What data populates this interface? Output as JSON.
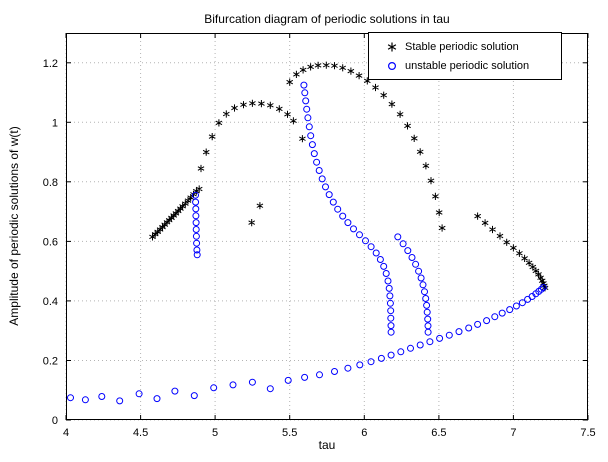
{
  "chart_data": {
    "type": "scatter",
    "title": "Bifurcation diagram of periodic solutions in tau",
    "xlabel": "tau",
    "ylabel": "Amplitude of periodic solutions of w(t)",
    "xlim": [
      4,
      7.5
    ],
    "ylim": [
      0,
      1.3
    ],
    "xticks": [
      4,
      4.5,
      5,
      5.5,
      6,
      6.5,
      7,
      7.5
    ],
    "yticks": [
      0,
      0.2,
      0.4,
      0.6,
      0.8,
      1,
      1.2
    ],
    "grid": true,
    "legend_position": "top-right",
    "axis_color": "#000000",
    "grid_color": "#b4b4b4",
    "series": [
      {
        "name": "Stable periodic solution",
        "marker": "asterisk",
        "color": "#000000",
        "points": [
          [
            4.58,
            0.615
          ],
          [
            4.598,
            0.624
          ],
          [
            4.615,
            0.632
          ],
          [
            4.631,
            0.64
          ],
          [
            4.647,
            0.648
          ],
          [
            4.662,
            0.656
          ],
          [
            4.677,
            0.664
          ],
          [
            4.692,
            0.671
          ],
          [
            4.707,
            0.679
          ],
          [
            4.722,
            0.687
          ],
          [
            4.737,
            0.694
          ],
          [
            4.752,
            0.702
          ],
          [
            4.767,
            0.71
          ],
          [
            4.782,
            0.718
          ],
          [
            4.8,
            0.727
          ],
          [
            4.818,
            0.737
          ],
          [
            4.836,
            0.747
          ],
          [
            4.855,
            0.758
          ],
          [
            4.874,
            0.769
          ],
          [
            4.893,
            0.776
          ],
          [
            4.905,
            0.845
          ],
          [
            4.94,
            0.9
          ],
          [
            4.98,
            0.952
          ],
          [
            5.025,
            0.998
          ],
          [
            5.075,
            1.028
          ],
          [
            5.13,
            1.048
          ],
          [
            5.19,
            1.059
          ],
          [
            5.25,
            1.064
          ],
          [
            5.31,
            1.063
          ],
          [
            5.37,
            1.057
          ],
          [
            5.43,
            1.045
          ],
          [
            5.485,
            1.027
          ],
          [
            5.525,
            1.005
          ],
          [
            5.245,
            0.663
          ],
          [
            5.3,
            0.72
          ],
          [
            5.585,
            0.945
          ],
          [
            5.5,
            1.135
          ],
          [
            5.545,
            1.161
          ],
          [
            5.59,
            1.176
          ],
          [
            5.64,
            1.186
          ],
          [
            5.69,
            1.191
          ],
          [
            5.745,
            1.192
          ],
          [
            5.8,
            1.19
          ],
          [
            5.855,
            1.183
          ],
          [
            5.91,
            1.172
          ],
          [
            5.965,
            1.157
          ],
          [
            6.02,
            1.139
          ],
          [
            6.075,
            1.117
          ],
          [
            6.13,
            1.091
          ],
          [
            6.185,
            1.061
          ],
          [
            6.24,
            1.027
          ],
          [
            6.29,
            0.988
          ],
          [
            6.335,
            0.946
          ],
          [
            6.375,
            0.901
          ],
          [
            6.413,
            0.854
          ],
          [
            6.447,
            0.804
          ],
          [
            6.477,
            0.751
          ],
          [
            6.502,
            0.697
          ],
          [
            6.522,
            0.645
          ],
          [
            6.76,
            0.685
          ],
          [
            6.81,
            0.662
          ],
          [
            6.86,
            0.64
          ],
          [
            6.91,
            0.618
          ],
          [
            6.955,
            0.597
          ],
          [
            7.0,
            0.578
          ],
          [
            7.04,
            0.56
          ],
          [
            7.075,
            0.543
          ],
          [
            7.105,
            0.528
          ],
          [
            7.13,
            0.514
          ],
          [
            7.151,
            0.501
          ],
          [
            7.168,
            0.489
          ],
          [
            7.182,
            0.478
          ],
          [
            7.193,
            0.468
          ],
          [
            7.201,
            0.459
          ],
          [
            7.207,
            0.451
          ],
          [
            7.212,
            0.444
          ]
        ]
      },
      {
        "name": "unstable periodic solution",
        "marker": "circle",
        "color": "#0000ff",
        "points": [
          [
            4.03,
            0.075
          ],
          [
            4.13,
            0.068
          ],
          [
            4.24,
            0.079
          ],
          [
            4.36,
            0.064
          ],
          [
            4.49,
            0.088
          ],
          [
            4.61,
            0.072
          ],
          [
            4.73,
            0.097
          ],
          [
            4.86,
            0.082
          ],
          [
            4.99,
            0.108
          ],
          [
            5.12,
            0.118
          ],
          [
            5.25,
            0.127
          ],
          [
            5.37,
            0.105
          ],
          [
            5.49,
            0.133
          ],
          [
            5.6,
            0.143
          ],
          [
            5.7,
            0.152
          ],
          [
            5.8,
            0.163
          ],
          [
            5.89,
            0.174
          ],
          [
            5.97,
            0.185
          ],
          [
            6.045,
            0.196
          ],
          [
            6.115,
            0.207
          ],
          [
            6.18,
            0.218
          ],
          [
            6.245,
            0.229
          ],
          [
            6.31,
            0.241
          ],
          [
            6.375,
            0.252
          ],
          [
            6.44,
            0.263
          ],
          [
            6.505,
            0.274
          ],
          [
            6.57,
            0.285
          ],
          [
            6.635,
            0.297
          ],
          [
            6.7,
            0.309
          ],
          [
            6.76,
            0.321
          ],
          [
            6.82,
            0.334
          ],
          [
            6.875,
            0.347
          ],
          [
            6.925,
            0.359
          ],
          [
            6.975,
            0.371
          ],
          [
            7.02,
            0.383
          ],
          [
            7.06,
            0.394
          ],
          [
            7.095,
            0.405
          ],
          [
            7.125,
            0.415
          ],
          [
            7.15,
            0.424
          ],
          [
            7.17,
            0.432
          ],
          [
            7.187,
            0.439
          ],
          [
            7.2,
            0.445
          ],
          [
            4.868,
            0.755
          ],
          [
            4.869,
            0.732
          ],
          [
            4.87,
            0.709
          ],
          [
            4.871,
            0.686
          ],
          [
            4.872,
            0.663
          ],
          [
            4.873,
            0.64
          ],
          [
            4.874,
            0.617
          ],
          [
            4.876,
            0.594
          ],
          [
            4.878,
            0.571
          ],
          [
            4.88,
            0.555
          ],
          [
            5.595,
            1.125
          ],
          [
            5.601,
            1.099
          ],
          [
            5.607,
            1.072
          ],
          [
            5.614,
            1.044
          ],
          [
            5.622,
            1.015
          ],
          [
            5.631,
            0.985
          ],
          [
            5.641,
            0.955
          ],
          [
            5.652,
            0.925
          ],
          [
            5.665,
            0.895
          ],
          [
            5.68,
            0.866
          ],
          [
            5.698,
            0.838
          ],
          [
            5.718,
            0.81
          ],
          [
            5.74,
            0.783
          ],
          [
            5.765,
            0.757
          ],
          [
            5.792,
            0.732
          ],
          [
            5.822,
            0.708
          ],
          [
            5.855,
            0.685
          ],
          [
            5.89,
            0.663
          ],
          [
            5.928,
            0.642
          ],
          [
            5.968,
            0.622
          ],
          [
            6.008,
            0.602
          ],
          [
            6.046,
            0.582
          ],
          [
            6.08,
            0.561
          ],
          [
            6.108,
            0.539
          ],
          [
            6.13,
            0.516
          ],
          [
            6.147,
            0.492
          ],
          [
            6.159,
            0.467
          ],
          [
            6.167,
            0.442
          ],
          [
            6.172,
            0.417
          ],
          [
            6.175,
            0.392
          ],
          [
            6.177,
            0.367
          ],
          [
            6.178,
            0.342
          ],
          [
            6.179,
            0.317
          ],
          [
            6.18,
            0.295
          ],
          [
            6.225,
            0.615
          ],
          [
            6.26,
            0.592
          ],
          [
            6.292,
            0.569
          ],
          [
            6.32,
            0.546
          ],
          [
            6.344,
            0.523
          ],
          [
            6.364,
            0.5
          ],
          [
            6.381,
            0.477
          ],
          [
            6.394,
            0.454
          ],
          [
            6.404,
            0.431
          ],
          [
            6.412,
            0.408
          ],
          [
            6.418,
            0.385
          ],
          [
            6.422,
            0.362
          ],
          [
            6.425,
            0.339
          ],
          [
            6.427,
            0.316
          ],
          [
            6.428,
            0.295
          ]
        ]
      }
    ]
  }
}
